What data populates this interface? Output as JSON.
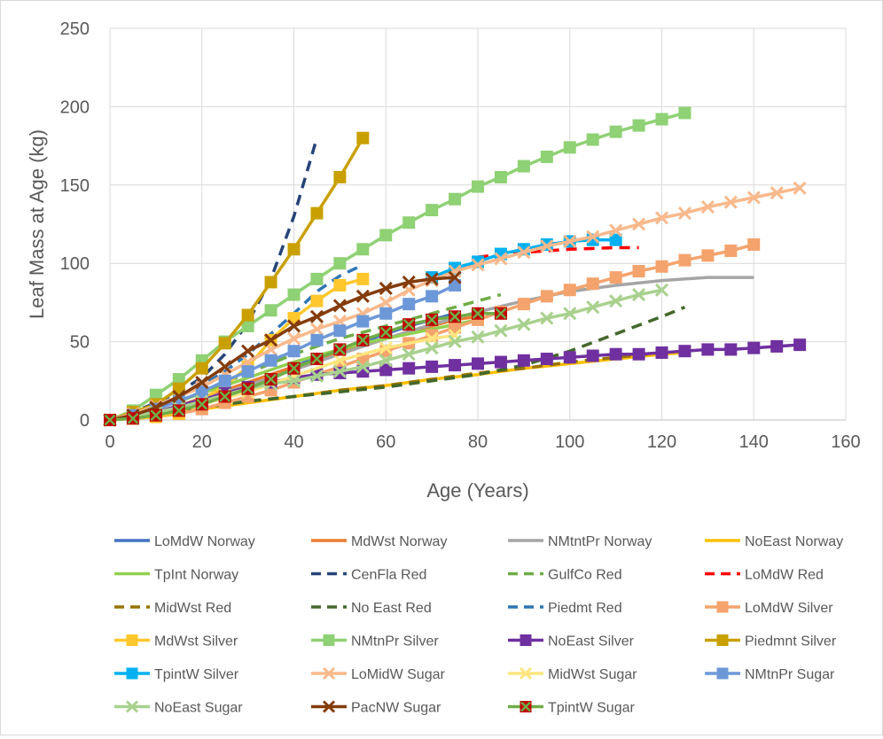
{
  "chart_data": {
    "type": "line",
    "title": "",
    "xlabel": "Age (Years)",
    "ylabel": "Leaf Mass at Age (kg)",
    "xlim": [
      0,
      160
    ],
    "ylim": [
      0,
      250
    ],
    "xticks": [
      0,
      20,
      40,
      60,
      80,
      100,
      120,
      140,
      160
    ],
    "yticks": [
      0,
      50,
      100,
      150,
      200,
      250
    ],
    "grid": true,
    "legend_position": "bottom",
    "series": [
      {
        "name": "LoMdW Norway",
        "color": "#4472c4",
        "dash": "solid",
        "marker": "none",
        "x": [
          0,
          5,
          10,
          15,
          20,
          25,
          30,
          35,
          40,
          45,
          50,
          55,
          60,
          65,
          70,
          75
        ],
        "y": [
          0,
          2,
          5,
          9,
          14,
          19,
          24,
          29,
          34,
          40,
          45,
          50,
          55,
          60,
          64,
          68
        ]
      },
      {
        "name": "MdWst Norway",
        "color": "#ed7d31",
        "dash": "solid",
        "marker": "none",
        "x": [
          0,
          5,
          10,
          15,
          20,
          25,
          30,
          35,
          40,
          45,
          50,
          55,
          60,
          65,
          70,
          75,
          80
        ],
        "y": [
          0,
          2,
          5,
          9,
          14,
          19,
          24,
          29,
          34,
          38,
          43,
          47,
          52,
          56,
          60,
          64,
          66
        ]
      },
      {
        "name": "NMtntPr Norway",
        "color": "#a5a5a5",
        "dash": "solid",
        "marker": "none",
        "x": [
          0,
          10,
          20,
          30,
          40,
          50,
          60,
          70,
          80,
          90,
          100,
          110,
          120,
          130,
          140
        ],
        "y": [
          0,
          5,
          13,
          22,
          32,
          42,
          52,
          61,
          69,
          76,
          82,
          86,
          89,
          91,
          91
        ]
      },
      {
        "name": "NoEast Norway",
        "color": "#ffc000",
        "dash": "solid",
        "marker": "none",
        "x": [
          0,
          10,
          20,
          30,
          40,
          50,
          60,
          70,
          80,
          90,
          100,
          110,
          120,
          125
        ],
        "y": [
          0,
          3,
          7,
          11,
          15,
          19,
          22,
          26,
          29,
          33,
          36,
          39,
          42,
          43
        ]
      },
      {
        "name": "TpInt Norway",
        "color": "#92d050",
        "dash": "solid",
        "marker": "none",
        "x": [
          0,
          5,
          10,
          15,
          20,
          25,
          30,
          35,
          40,
          45,
          50,
          55,
          60,
          65,
          70,
          75,
          80
        ],
        "y": [
          0,
          3,
          7,
          12,
          17,
          22,
          27,
          32,
          37,
          41,
          45,
          49,
          52,
          55,
          58,
          61,
          64
        ]
      },
      {
        "name": "CenFla Red",
        "color": "#264478",
        "dash": "dash",
        "marker": "none",
        "x": [
          0,
          5,
          10,
          15,
          20,
          25,
          30,
          35,
          40,
          45
        ],
        "y": [
          0,
          5,
          11,
          18,
          27,
          42,
          62,
          90,
          130,
          180
        ]
      },
      {
        "name": "GulfCo Red",
        "color": "#70ad47",
        "dash": "dash",
        "marker": "none",
        "x": [
          0,
          5,
          10,
          15,
          20,
          25,
          30,
          35,
          40,
          45,
          50,
          55,
          60,
          65,
          70,
          75,
          80,
          85
        ],
        "y": [
          0,
          3,
          7,
          12,
          18,
          24,
          30,
          36,
          42,
          47,
          52,
          56,
          60,
          64,
          68,
          72,
          76,
          80
        ]
      },
      {
        "name": "LoMdW Red",
        "color": "#ff0000",
        "dash": "dash",
        "marker": "none",
        "x": [
          80,
          90,
          100,
          110,
          115
        ],
        "y": [
          104,
          107,
          109,
          110,
          110
        ]
      },
      {
        "name": "MidWst Red",
        "color": "#997300",
        "dash": "dash",
        "marker": "none",
        "x": [
          0,
          10,
          20,
          30,
          40,
          50,
          60,
          70,
          80,
          90,
          100,
          110,
          120
        ],
        "y": [
          0,
          4,
          8,
          12,
          15,
          19,
          22,
          26,
          30,
          33,
          37,
          40,
          43
        ]
      },
      {
        "name": "No East Red",
        "color": "#43682b",
        "dash": "dash",
        "marker": "none",
        "x": [
          0,
          10,
          20,
          30,
          40,
          50,
          60,
          70,
          80,
          90,
          100,
          110,
          120,
          125
        ],
        "y": [
          0,
          4,
          8,
          12,
          15,
          18,
          21,
          25,
          29,
          35,
          44,
          55,
          66,
          72
        ]
      },
      {
        "name": "Piedmt Red",
        "color": "#2e75b6",
        "dash": "dash",
        "marker": "none",
        "x": [
          0,
          5,
          10,
          15,
          20,
          25,
          30,
          35,
          40,
          45,
          50,
          55
        ],
        "y": [
          0,
          4,
          9,
          15,
          22,
          31,
          42,
          55,
          68,
          82,
          92,
          99
        ]
      },
      {
        "name": "LoMdW Silver",
        "color": "#f4a36c",
        "dash": "solid",
        "marker": "square",
        "x": [
          0,
          5,
          10,
          15,
          20,
          25,
          30,
          35,
          40,
          45,
          50,
          55,
          60,
          65,
          70,
          75,
          80,
          85,
          90,
          95,
          100,
          105,
          110,
          115,
          120,
          125,
          130,
          135,
          140
        ],
        "y": [
          0,
          1,
          2,
          4,
          7,
          11,
          15,
          19,
          24,
          29,
          34,
          39,
          44,
          49,
          54,
          59,
          64,
          69,
          74,
          79,
          83,
          87,
          91,
          95,
          98,
          102,
          105,
          108,
          112
        ]
      },
      {
        "name": "MdWst Silver",
        "color": "#ffc72c",
        "dash": "solid",
        "marker": "square",
        "x": [
          0,
          5,
          10,
          15,
          20,
          25,
          30,
          35,
          40,
          45,
          50,
          55
        ],
        "y": [
          0,
          1,
          2,
          4,
          13,
          22,
          34,
          51,
          65,
          76,
          86,
          90
        ]
      },
      {
        "name": "NMtnPr Silver",
        "color": "#8fd175",
        "dash": "solid",
        "marker": "square",
        "x": [
          0,
          5,
          10,
          15,
          20,
          25,
          30,
          35,
          40,
          45,
          50,
          55,
          60,
          65,
          70,
          75,
          80,
          85,
          90,
          95,
          100,
          105,
          110,
          115,
          120,
          125
        ],
        "y": [
          0,
          6,
          16,
          26,
          38,
          50,
          60,
          70,
          80,
          90,
          100,
          109,
          118,
          126,
          134,
          141,
          149,
          155,
          162,
          168,
          174,
          179,
          184,
          188,
          192,
          196
        ]
      },
      {
        "name": "NoEast Silver",
        "color": "#7030a0",
        "dash": "solid",
        "marker": "square",
        "x": [
          0,
          5,
          10,
          15,
          20,
          25,
          30,
          35,
          40,
          45,
          50,
          55,
          60,
          65,
          70,
          75,
          80,
          85,
          90,
          95,
          100,
          105,
          110,
          115,
          120,
          125,
          130,
          135,
          140,
          145,
          150
        ],
        "y": [
          0,
          2,
          5,
          9,
          13,
          17,
          21,
          24,
          27,
          29,
          30,
          31,
          32,
          33,
          34,
          35,
          36,
          37,
          38,
          39,
          40,
          41,
          42,
          42,
          43,
          44,
          45,
          45,
          46,
          47,
          48
        ]
      },
      {
        "name": "Piedmnt Silver",
        "color": "#c9a000",
        "dash": "solid",
        "marker": "square",
        "x": [
          0,
          5,
          10,
          15,
          20,
          25,
          30,
          35,
          40,
          45,
          50,
          55
        ],
        "y": [
          0,
          5,
          10,
          20,
          33,
          49,
          67,
          88,
          109,
          132,
          155,
          180
        ]
      },
      {
        "name": "TpintW Silver",
        "color": "#00b0f0",
        "dash": "solid",
        "marker": "square",
        "x": [
          70,
          75,
          80,
          85,
          90,
          95,
          100,
          105,
          110
        ],
        "y": [
          91,
          97,
          101,
          106,
          109,
          112,
          114,
          115,
          115
        ]
      },
      {
        "name": "LoMidW Sugar",
        "color": "#f8b98c",
        "dash": "solid",
        "marker": "x",
        "x": [
          0,
          5,
          10,
          15,
          20,
          25,
          30,
          35,
          40,
          45,
          50,
          55,
          60,
          65,
          70,
          75,
          80,
          85,
          90,
          95,
          100,
          105,
          110,
          115,
          120,
          125,
          130,
          135,
          140,
          145,
          150
        ],
        "y": [
          0,
          4,
          9,
          15,
          21,
          29,
          37,
          45,
          52,
          58,
          63,
          68,
          75,
          83,
          89,
          95,
          99,
          103,
          107,
          111,
          114,
          117,
          121,
          125,
          129,
          132,
          136,
          139,
          142,
          145,
          148
        ]
      },
      {
        "name": "MidWst Sugar",
        "color": "#ffe57f",
        "dash": "solid",
        "marker": "x",
        "x": [
          0,
          10,
          20,
          30,
          40,
          50,
          60,
          70,
          75
        ],
        "y": [
          0,
          4,
          10,
          18,
          28,
          38,
          46,
          52,
          54
        ]
      },
      {
        "name": "NMtnPr Sugar",
        "color": "#6d98d8",
        "dash": "solid",
        "marker": "square",
        "x": [
          0,
          5,
          10,
          15,
          20,
          25,
          30,
          35,
          40,
          45,
          50,
          55,
          60,
          65,
          70,
          75
        ],
        "y": [
          0,
          3,
          7,
          12,
          18,
          25,
          31,
          38,
          44,
          51,
          57,
          63,
          68,
          74,
          79,
          86
        ]
      },
      {
        "name": "NoEast Sugar",
        "color": "#a9d18e",
        "dash": "solid",
        "marker": "x",
        "x": [
          0,
          5,
          10,
          15,
          20,
          25,
          30,
          35,
          40,
          45,
          50,
          55,
          60,
          65,
          70,
          75,
          80,
          85,
          90,
          95,
          100,
          105,
          110,
          115,
          120
        ],
        "y": [
          0,
          2,
          5,
          8,
          12,
          16,
          20,
          23,
          25,
          28,
          31,
          34,
          38,
          42,
          46,
          50,
          53,
          57,
          61,
          65,
          68,
          72,
          76,
          80,
          83
        ]
      },
      {
        "name": "PacNW Sugar",
        "color": "#843c0c",
        "dash": "solid",
        "marker": "x",
        "x": [
          0,
          5,
          10,
          15,
          20,
          25,
          30,
          35,
          40,
          45,
          50,
          55,
          60,
          65,
          70,
          75
        ],
        "y": [
          0,
          3,
          8,
          15,
          24,
          34,
          44,
          51,
          60,
          66,
          73,
          79,
          84,
          88,
          90,
          91
        ]
      },
      {
        "name": "TpintW Sugar",
        "color": "#70ad47",
        "dash": "solid",
        "marker": "squarex",
        "x": [
          0,
          5,
          10,
          15,
          20,
          25,
          30,
          35,
          40,
          45,
          50,
          55,
          60,
          65,
          70,
          75,
          80,
          85
        ],
        "y": [
          0,
          1,
          3,
          6,
          10,
          15,
          20,
          26,
          33,
          39,
          45,
          51,
          56,
          61,
          64,
          66,
          68,
          68
        ]
      }
    ]
  }
}
